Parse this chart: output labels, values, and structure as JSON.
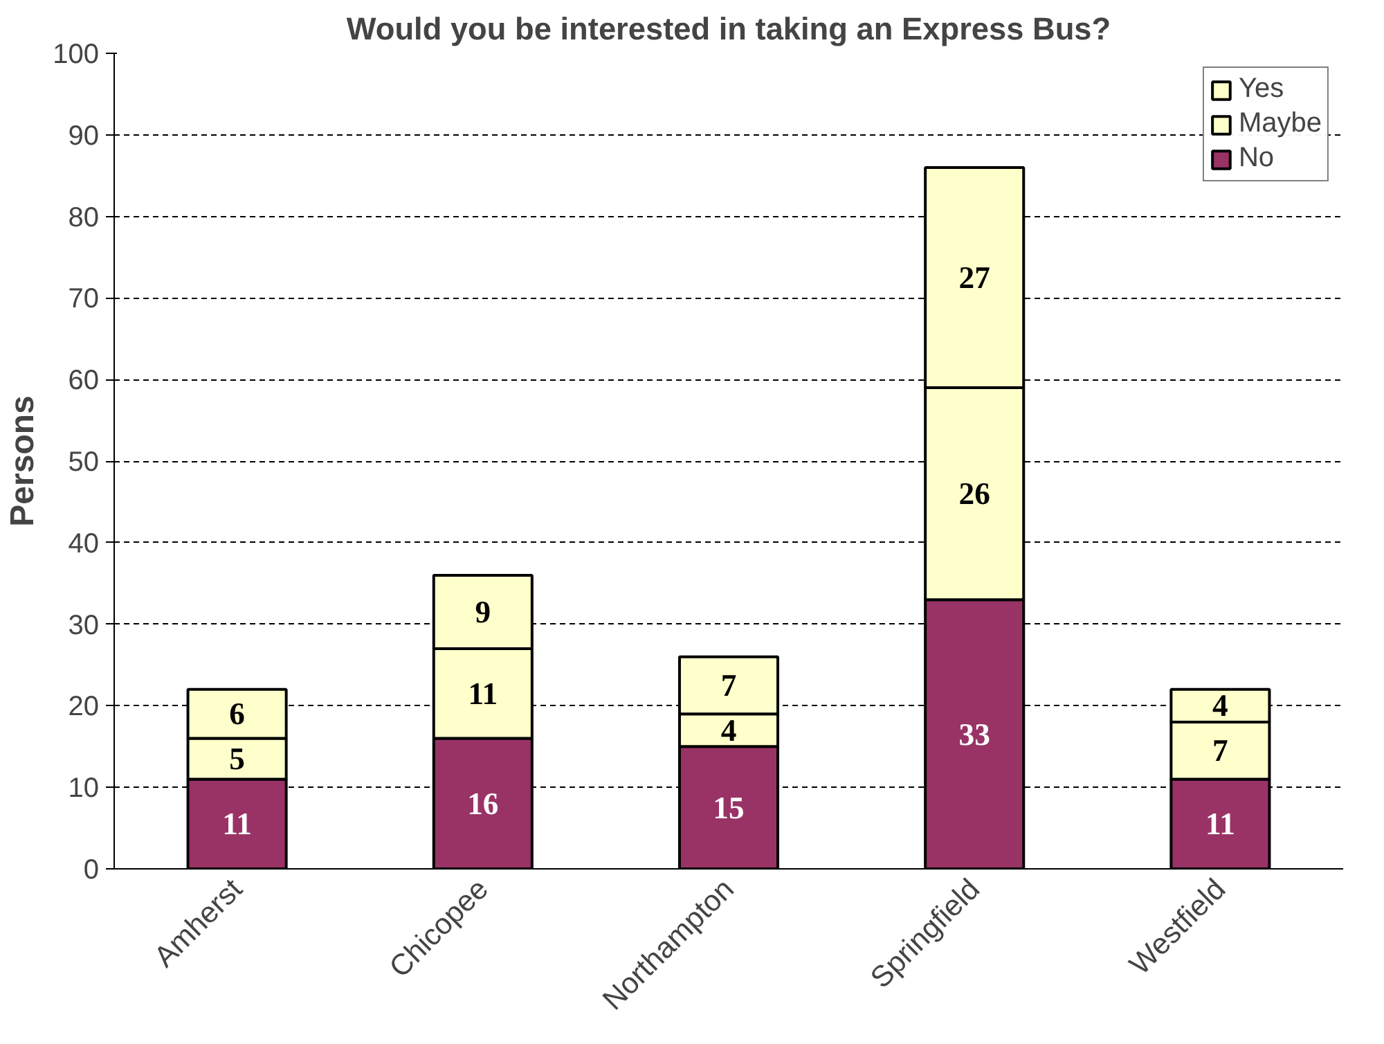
{
  "chart_data": {
    "type": "bar",
    "title": "Would you be interested in taking an Express Bus?",
    "ylabel": "Persons",
    "categories": [
      "Amherst",
      "Chicopee",
      "Northampton",
      "Springfield",
      "Westfield"
    ],
    "stacked": true,
    "series": [
      {
        "name": "No",
        "color": "#993366",
        "values": [
          11,
          16,
          15,
          33,
          11
        ]
      },
      {
        "name": "Maybe",
        "color": "#ffffcc",
        "values": [
          5,
          11,
          4,
          26,
          7
        ]
      },
      {
        "name": "Yes",
        "color": "#ffffcc",
        "values": [
          6,
          9,
          7,
          27,
          4
        ]
      }
    ],
    "ylim": [
      0,
      100
    ],
    "yticks": [
      0,
      10,
      20,
      30,
      40,
      50,
      60,
      70,
      80,
      90,
      100
    ],
    "grid": "y",
    "legend": "top right",
    "data_labels": true
  }
}
